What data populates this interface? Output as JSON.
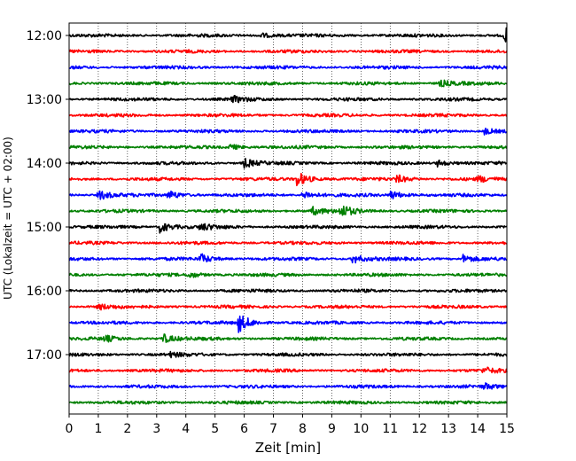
{
  "chart_data": {
    "type": "line",
    "title": "",
    "xlabel": "Zeit  [min]",
    "ylabel": "UTC (Lokalzeit = UTC + 02:00)",
    "xlim": [
      0,
      15
    ],
    "x_ticks": [
      0,
      1,
      2,
      3,
      4,
      5,
      6,
      7,
      8,
      9,
      10,
      11,
      12,
      13,
      14,
      15
    ],
    "y_tick_labels": [
      "12:00",
      "13:00",
      "14:00",
      "15:00",
      "16:00",
      "17:00"
    ],
    "grid": "vertical dotted lines at each minute",
    "trace_start_time": "12:00",
    "trace_interval_minutes": 15,
    "trace_count": 24,
    "color_cycle": [
      "#000000",
      "#ff0000",
      "#0000ff",
      "#008000"
    ],
    "events": [
      {
        "trace": 0,
        "minute": 14.9,
        "amp": 1.4
      },
      {
        "trace": 0,
        "minute": 6.5,
        "amp": 0.5
      },
      {
        "trace": 3,
        "minute": 12.7,
        "amp": 0.6
      },
      {
        "trace": 4,
        "minute": 5.6,
        "amp": 0.5
      },
      {
        "trace": 6,
        "minute": 14.2,
        "amp": 0.6
      },
      {
        "trace": 7,
        "minute": 5.5,
        "amp": 0.5
      },
      {
        "trace": 8,
        "minute": 6.0,
        "amp": 0.8
      },
      {
        "trace": 8,
        "minute": 12.6,
        "amp": 0.6
      },
      {
        "trace": 9,
        "minute": 7.8,
        "amp": 1.3
      },
      {
        "trace": 9,
        "minute": 11.2,
        "amp": 0.7
      },
      {
        "trace": 9,
        "minute": 14.0,
        "amp": 0.5
      },
      {
        "trace": 10,
        "minute": 1.0,
        "amp": 0.9
      },
      {
        "trace": 10,
        "minute": 3.4,
        "amp": 0.8
      },
      {
        "trace": 10,
        "minute": 8.0,
        "amp": 0.8
      },
      {
        "trace": 10,
        "minute": 11.0,
        "amp": 0.8
      },
      {
        "trace": 11,
        "minute": 8.3,
        "amp": 0.7
      },
      {
        "trace": 11,
        "minute": 9.3,
        "amp": 1.1
      },
      {
        "trace": 12,
        "minute": 3.1,
        "amp": 1.0
      },
      {
        "trace": 12,
        "minute": 4.5,
        "amp": 0.6
      },
      {
        "trace": 14,
        "minute": 4.5,
        "amp": 0.8
      },
      {
        "trace": 14,
        "minute": 9.7,
        "amp": 0.8
      },
      {
        "trace": 14,
        "minute": 13.5,
        "amp": 0.7
      },
      {
        "trace": 15,
        "minute": 4.1,
        "amp": 0.5
      },
      {
        "trace": 17,
        "minute": 1.0,
        "amp": 0.5
      },
      {
        "trace": 18,
        "minute": 5.8,
        "amp": 1.6
      },
      {
        "trace": 19,
        "minute": 3.2,
        "amp": 0.8
      },
      {
        "trace": 19,
        "minute": 1.2,
        "amp": 0.5
      },
      {
        "trace": 20,
        "minute": 3.4,
        "amp": 0.4
      },
      {
        "trace": 21,
        "minute": 14.2,
        "amp": 0.5
      },
      {
        "trace": 22,
        "minute": 14.2,
        "amp": 0.5
      }
    ]
  }
}
